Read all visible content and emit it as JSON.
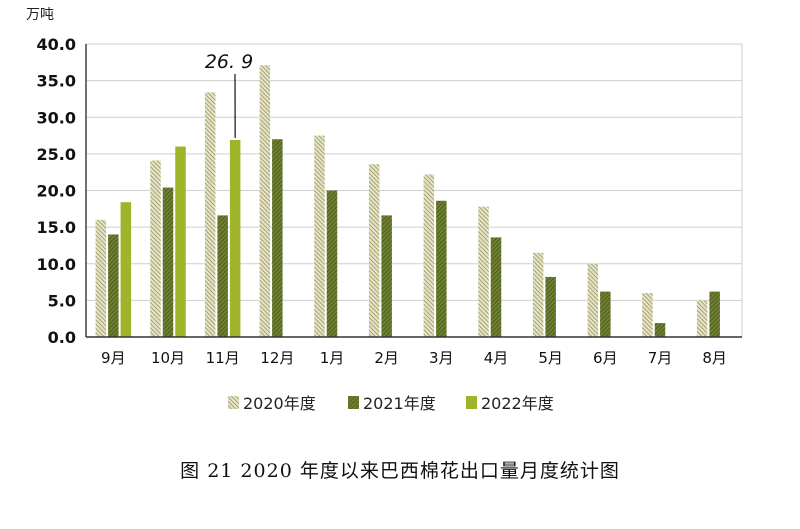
{
  "caption": "图 21   2020 年度以来巴西棉花出口量月度统计图",
  "colors": {
    "series_2020": "#a7a46b",
    "series_2021": "#52651e",
    "series_2022": "#9fb42a",
    "grid": "#cfcfcf",
    "axis": "#333333"
  },
  "chart_data": {
    "type": "bar",
    "unit": "万吨",
    "categories": [
      "9月",
      "10月",
      "11月",
      "12月",
      "1月",
      "2月",
      "3月",
      "4月",
      "5月",
      "6月",
      "7月",
      "8月"
    ],
    "series": [
      {
        "name": "2020年度",
        "pattern": "hatched",
        "values": [
          16.0,
          24.1,
          33.4,
          37.1,
          27.5,
          23.6,
          22.2,
          17.8,
          11.5,
          10.0,
          6.0,
          5.0
        ]
      },
      {
        "name": "2021年度",
        "pattern": "hatched",
        "values": [
          14.0,
          20.4,
          16.6,
          27.0,
          20.0,
          16.6,
          18.6,
          13.6,
          8.2,
          6.2,
          1.9,
          6.2
        ]
      },
      {
        "name": "2022年度",
        "pattern": "solid",
        "values": [
          18.4,
          26.0,
          26.9,
          null,
          null,
          null,
          null,
          null,
          null,
          null,
          null,
          null
        ]
      }
    ],
    "ylim": [
      0,
      40
    ],
    "yticks": [
      "0.0",
      "5.0",
      "10.0",
      "15.0",
      "20.0",
      "25.0",
      "30.0",
      "35.0",
      "40.0"
    ],
    "annotation": {
      "text": "26. 9",
      "category": "11月",
      "series": "2022年度",
      "value": 26.9
    },
    "grid": true,
    "legend_position": "bottom"
  }
}
